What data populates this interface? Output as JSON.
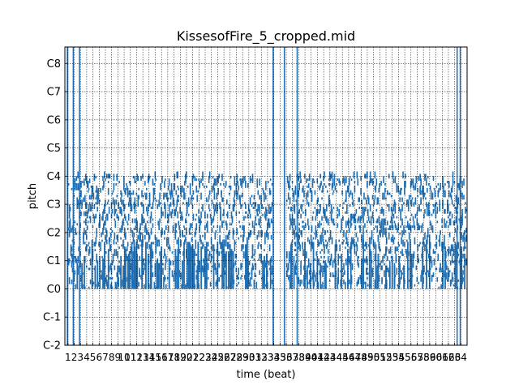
{
  "chart_data": {
    "type": "heatmap",
    "title": "KissesofFire_5_cropped.mid",
    "xlabel": "time (beat)",
    "ylabel": "pitch",
    "xlim": [
      0,
      64.5
    ],
    "ylim": [
      0,
      127
    ],
    "grid": true,
    "x_ticks": [
      {
        "beat": 1,
        "label": "1"
      },
      {
        "beat": 2,
        "label": "2"
      },
      {
        "beat": 3,
        "label": "3"
      },
      {
        "beat": 4,
        "label": "4"
      },
      {
        "beat": 5,
        "label": "5"
      },
      {
        "beat": 6,
        "label": "6"
      },
      {
        "beat": 7,
        "label": "7"
      },
      {
        "beat": 8,
        "label": "8"
      },
      {
        "beat": 9,
        "label": "9"
      },
      {
        "beat": 10,
        "label": "10"
      },
      {
        "beat": 11,
        "label": "11"
      },
      {
        "beat": 12,
        "label": "12"
      },
      {
        "beat": 13,
        "label": "13"
      },
      {
        "beat": 14,
        "label": "14"
      },
      {
        "beat": 15,
        "label": "15"
      },
      {
        "beat": 16,
        "label": "16"
      },
      {
        "beat": 17,
        "label": "17"
      },
      {
        "beat": 18,
        "label": "18"
      },
      {
        "beat": 19,
        "label": "19"
      },
      {
        "beat": 20,
        "label": "20"
      },
      {
        "beat": 21,
        "label": "21"
      },
      {
        "beat": 22,
        "label": "22"
      },
      {
        "beat": 23,
        "label": "23"
      },
      {
        "beat": 24,
        "label": "24"
      },
      {
        "beat": 25,
        "label": "25"
      },
      {
        "beat": 26,
        "label": "26"
      },
      {
        "beat": 27,
        "label": "27"
      },
      {
        "beat": 28,
        "label": "28"
      },
      {
        "beat": 29,
        "label": "29"
      },
      {
        "beat": 30,
        "label": "30"
      },
      {
        "beat": 31,
        "label": "31"
      },
      {
        "beat": 32,
        "label": "32"
      },
      {
        "beat": 33,
        "label": "33"
      },
      {
        "beat": 34,
        "label": "34"
      },
      {
        "beat": 35,
        "label": "35"
      },
      {
        "beat": 36,
        "label": "36"
      },
      {
        "beat": 37,
        "label": "37"
      },
      {
        "beat": 38,
        "label": "38"
      },
      {
        "beat": 39,
        "label": "39"
      },
      {
        "beat": 40,
        "label": "40"
      },
      {
        "beat": 41,
        "label": "41"
      },
      {
        "beat": 42,
        "label": "42"
      },
      {
        "beat": 43,
        "label": "43"
      },
      {
        "beat": 44,
        "label": "44"
      },
      {
        "beat": 45,
        "label": "45"
      },
      {
        "beat": 46,
        "label": "46"
      },
      {
        "beat": 47,
        "label": "47"
      },
      {
        "beat": 48,
        "label": "48"
      },
      {
        "beat": 49,
        "label": "49"
      },
      {
        "beat": 50,
        "label": "50"
      },
      {
        "beat": 51,
        "label": "51"
      },
      {
        "beat": 52,
        "label": "52"
      },
      {
        "beat": 53,
        "label": "53"
      },
      {
        "beat": 54,
        "label": "54"
      },
      {
        "beat": 55,
        "label": "55"
      },
      {
        "beat": 56,
        "label": "56"
      },
      {
        "beat": 57,
        "label": "57"
      },
      {
        "beat": 58,
        "label": "58"
      },
      {
        "beat": 59,
        "label": "59"
      },
      {
        "beat": 60,
        "label": "60"
      },
      {
        "beat": 61,
        "label": "61"
      },
      {
        "beat": 62,
        "label": "62"
      },
      {
        "beat": 63,
        "label": "63"
      },
      {
        "beat": 64,
        "label": "64"
      }
    ],
    "y_ticks": [
      {
        "pitch": 0,
        "label": "C-2"
      },
      {
        "pitch": 12,
        "label": "C-1"
      },
      {
        "pitch": 24,
        "label": "C0"
      },
      {
        "pitch": 36,
        "label": "C1"
      },
      {
        "pitch": 48,
        "label": "C2"
      },
      {
        "pitch": 60,
        "label": "C3"
      },
      {
        "pitch": 72,
        "label": "C4"
      },
      {
        "pitch": 84,
        "label": "C5"
      },
      {
        "pitch": 96,
        "label": "C6"
      },
      {
        "pitch": 108,
        "label": "C7"
      },
      {
        "pitch": 120,
        "label": "C8"
      }
    ],
    "full_range_beats": [
      {
        "start": 0.3,
        "end": 0.55
      },
      {
        "start": 1.25,
        "end": 1.45
      },
      {
        "start": 2.25,
        "end": 2.45
      },
      {
        "start": 33.3,
        "end": 33.5
      },
      {
        "start": 35.1,
        "end": 35.3
      },
      {
        "start": 37.15,
        "end": 37.35
      },
      {
        "start": 62.8,
        "end": 63.0
      },
      {
        "start": 63.3,
        "end": 63.5
      }
    ],
    "dense_regions": [
      {
        "start_beat": 0.5,
        "end_beat": 33.2,
        "pitch_low": 24,
        "pitch_high": 72
      },
      {
        "start_beat": 35.5,
        "end_beat": 64.3,
        "pitch_low": 24,
        "pitch_high": 72
      }
    ],
    "note_color": "#1f6fb4"
  }
}
